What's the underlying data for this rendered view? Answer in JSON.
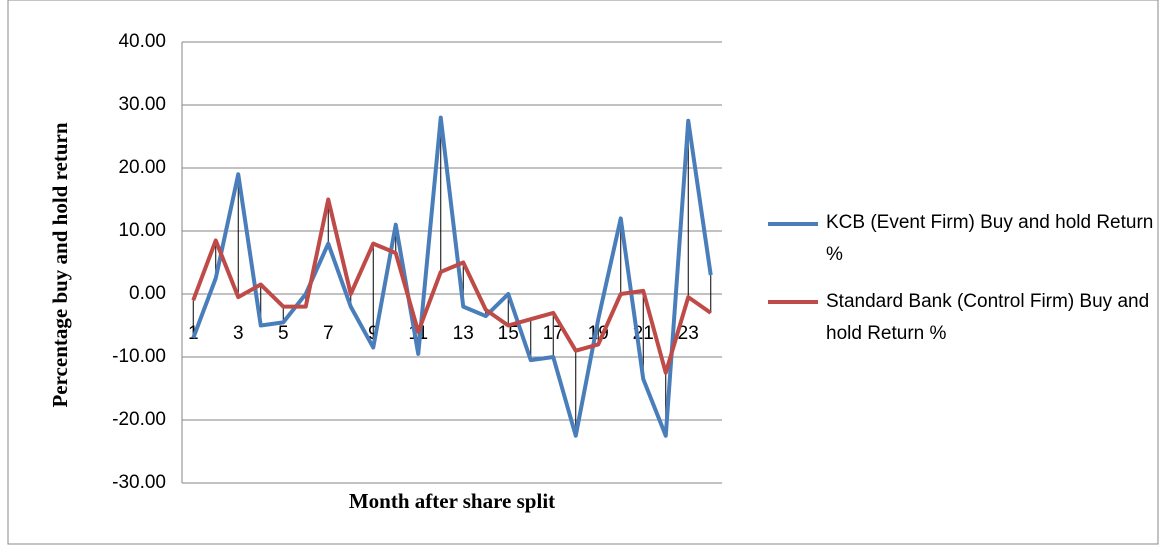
{
  "chart_data": {
    "type": "line",
    "x_label": "Month after share split",
    "y_label": "Percentage buy and hold return",
    "categories": [
      "1",
      null,
      "3",
      null,
      "5",
      null,
      "7",
      null,
      "9",
      null,
      "11",
      null,
      "13",
      null,
      "15",
      null,
      "17",
      null,
      "19",
      null,
      "21",
      null,
      "23",
      null
    ],
    "series": [
      {
        "name": "KCB  (Event Firm)  Buy and hold Return %",
        "color": "#4a7ebb",
        "values": [
          -7,
          2.5,
          19,
          -5,
          -4.5,
          0,
          8,
          -2,
          -8.5,
          11,
          -9.5,
          28,
          -2,
          -3.5,
          0,
          -10.5,
          -10,
          -22.5,
          -4,
          12,
          -13.5,
          -22.5,
          27.5,
          3
        ]
      },
      {
        "name": "Standard Bank (Control Firm) Buy and hold Return %",
        "color": "#be4b48",
        "values": [
          -1,
          8.5,
          -0.5,
          1.5,
          -2,
          -2,
          15,
          0,
          8,
          6.5,
          -6,
          3.5,
          5,
          -2.5,
          -5,
          -4,
          -3,
          -9,
          -8,
          0,
          0.5,
          -12.5,
          -0.5,
          -3
        ]
      }
    ],
    "ylim": [
      -30,
      40
    ],
    "yticks": [
      {
        "value": -30,
        "label": "-30.00"
      },
      {
        "value": -20,
        "label": "-20.00"
      },
      {
        "value": -10,
        "label": "-10.00"
      },
      {
        "value": 0,
        "label": "0.00"
      },
      {
        "value": 10,
        "label": "10.00"
      },
      {
        "value": 20,
        "label": "20.00"
      },
      {
        "value": 30,
        "label": "30.00"
      },
      {
        "value": 40,
        "label": "40.00"
      }
    ],
    "grid": true,
    "high_low_lines": true,
    "legend": "right"
  }
}
